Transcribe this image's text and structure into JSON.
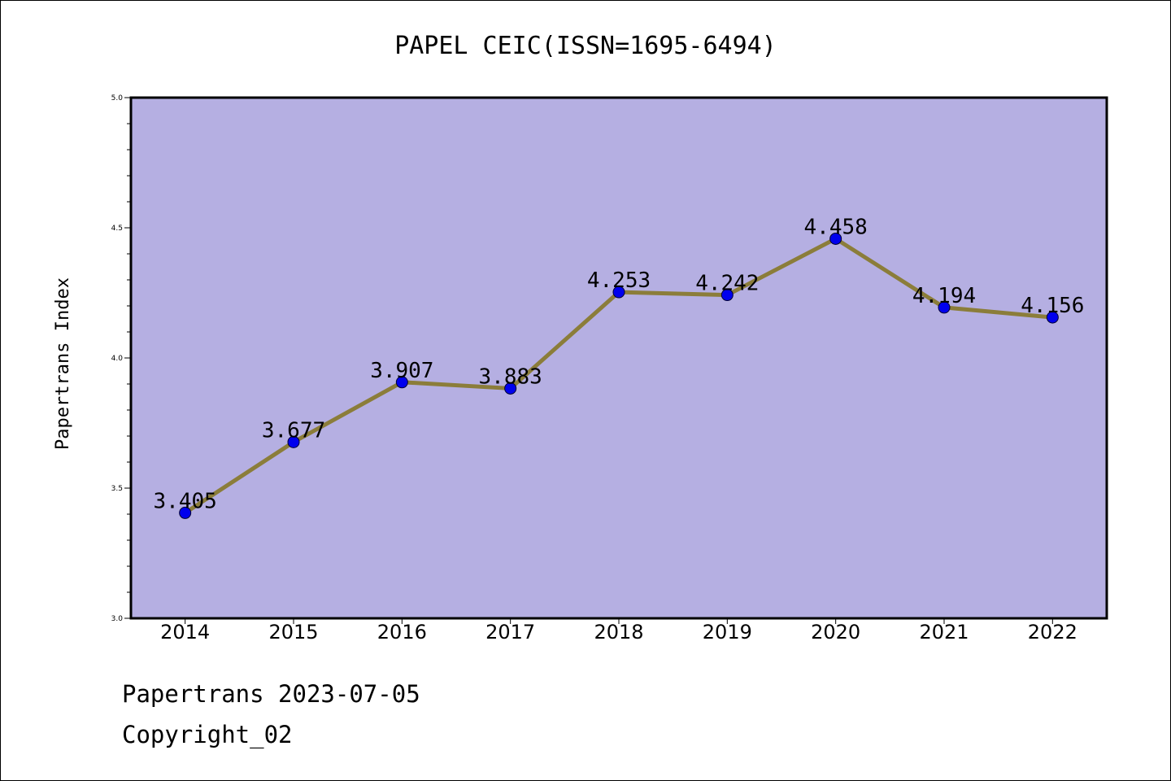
{
  "chart_data": {
    "type": "line",
    "title": "PAPEL CEIC(ISSN=1695-6494)",
    "ylabel": "Papertrans Index",
    "xlabel": "",
    "x": [
      "2014",
      "2015",
      "2016",
      "2017",
      "2018",
      "2019",
      "2020",
      "2021",
      "2022"
    ],
    "series": [
      {
        "values": [
          3.405,
          3.677,
          3.907,
          3.883,
          4.253,
          4.242,
          4.458,
          4.194,
          4.156
        ],
        "labels": [
          "3.405",
          "3.677",
          "3.907",
          "3.883",
          "4.253",
          "4.242",
          "4.458",
          "4.194",
          "4.156"
        ]
      }
    ],
    "ylim": [
      3.0,
      5.0
    ],
    "yticks": [
      "3.0",
      "3.5",
      "4.0",
      "4.5",
      "5.0"
    ],
    "grid": false,
    "colors": {
      "plot_background": "#b5afe2",
      "line": "#8b7d3a",
      "marker": "#0000ee"
    }
  },
  "footer": {
    "source": "Papertrans 2023-07-05",
    "copyright": "Copyright_02"
  }
}
